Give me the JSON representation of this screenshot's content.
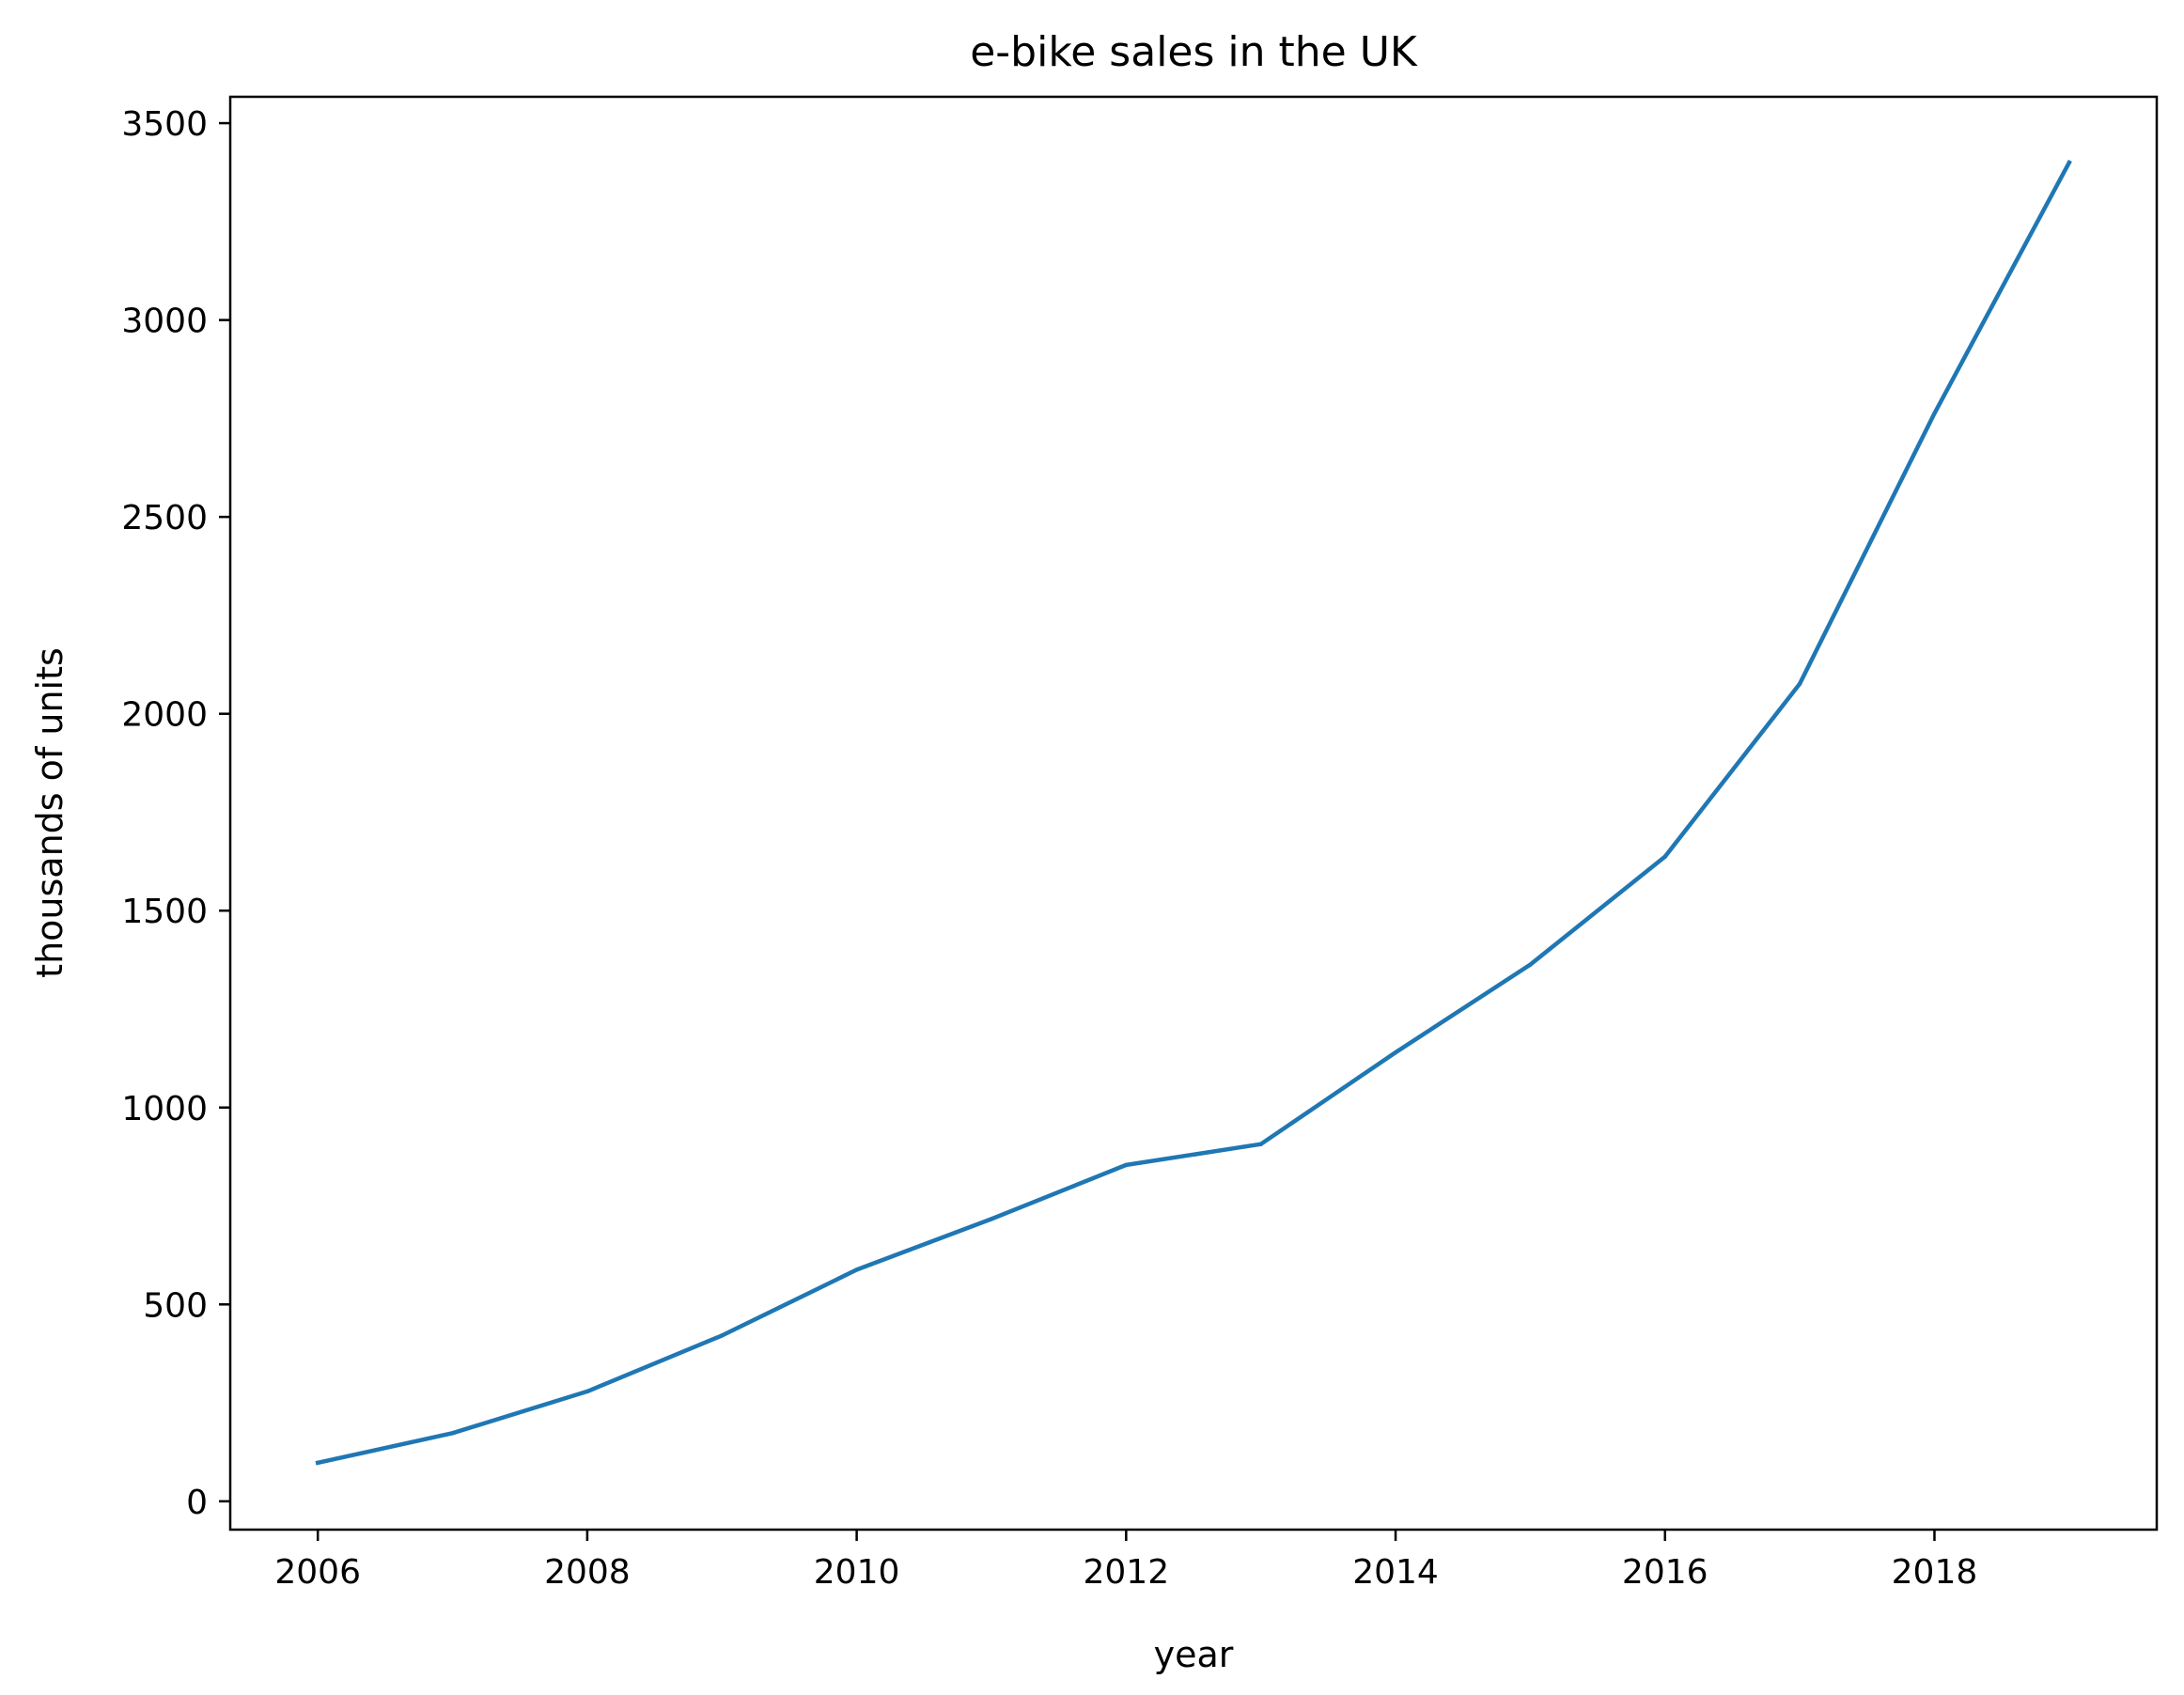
{
  "chart_data": {
    "type": "line",
    "title": "e-bike sales in the UK",
    "xlabel": "year",
    "ylabel": "thousands of units",
    "x": [
      2006,
      2007,
      2008,
      2009,
      2010,
      2011,
      2012,
      2013,
      2014,
      2015,
      2016,
      2017,
      2018,
      2019
    ],
    "series": [
      {
        "values": [
          98,
          173,
          279,
          421,
          588,
          717,
          854,
          907,
          1140,
          1363,
          1637,
          2076,
          2763,
          3400
        ]
      }
    ],
    "xlim": [
      2005.35,
      2019.65
    ],
    "ylim": [
      -72,
      3567
    ],
    "x_ticks": [
      2006,
      2008,
      2010,
      2012,
      2014,
      2016,
      2018
    ],
    "y_ticks": [
      0,
      500,
      1000,
      1500,
      2000,
      2500,
      3000,
      3500
    ],
    "grid": false,
    "legend": "none",
    "colors": {
      "series": "#1f77b4",
      "axes": "#000000",
      "background": "#ffffff"
    }
  }
}
